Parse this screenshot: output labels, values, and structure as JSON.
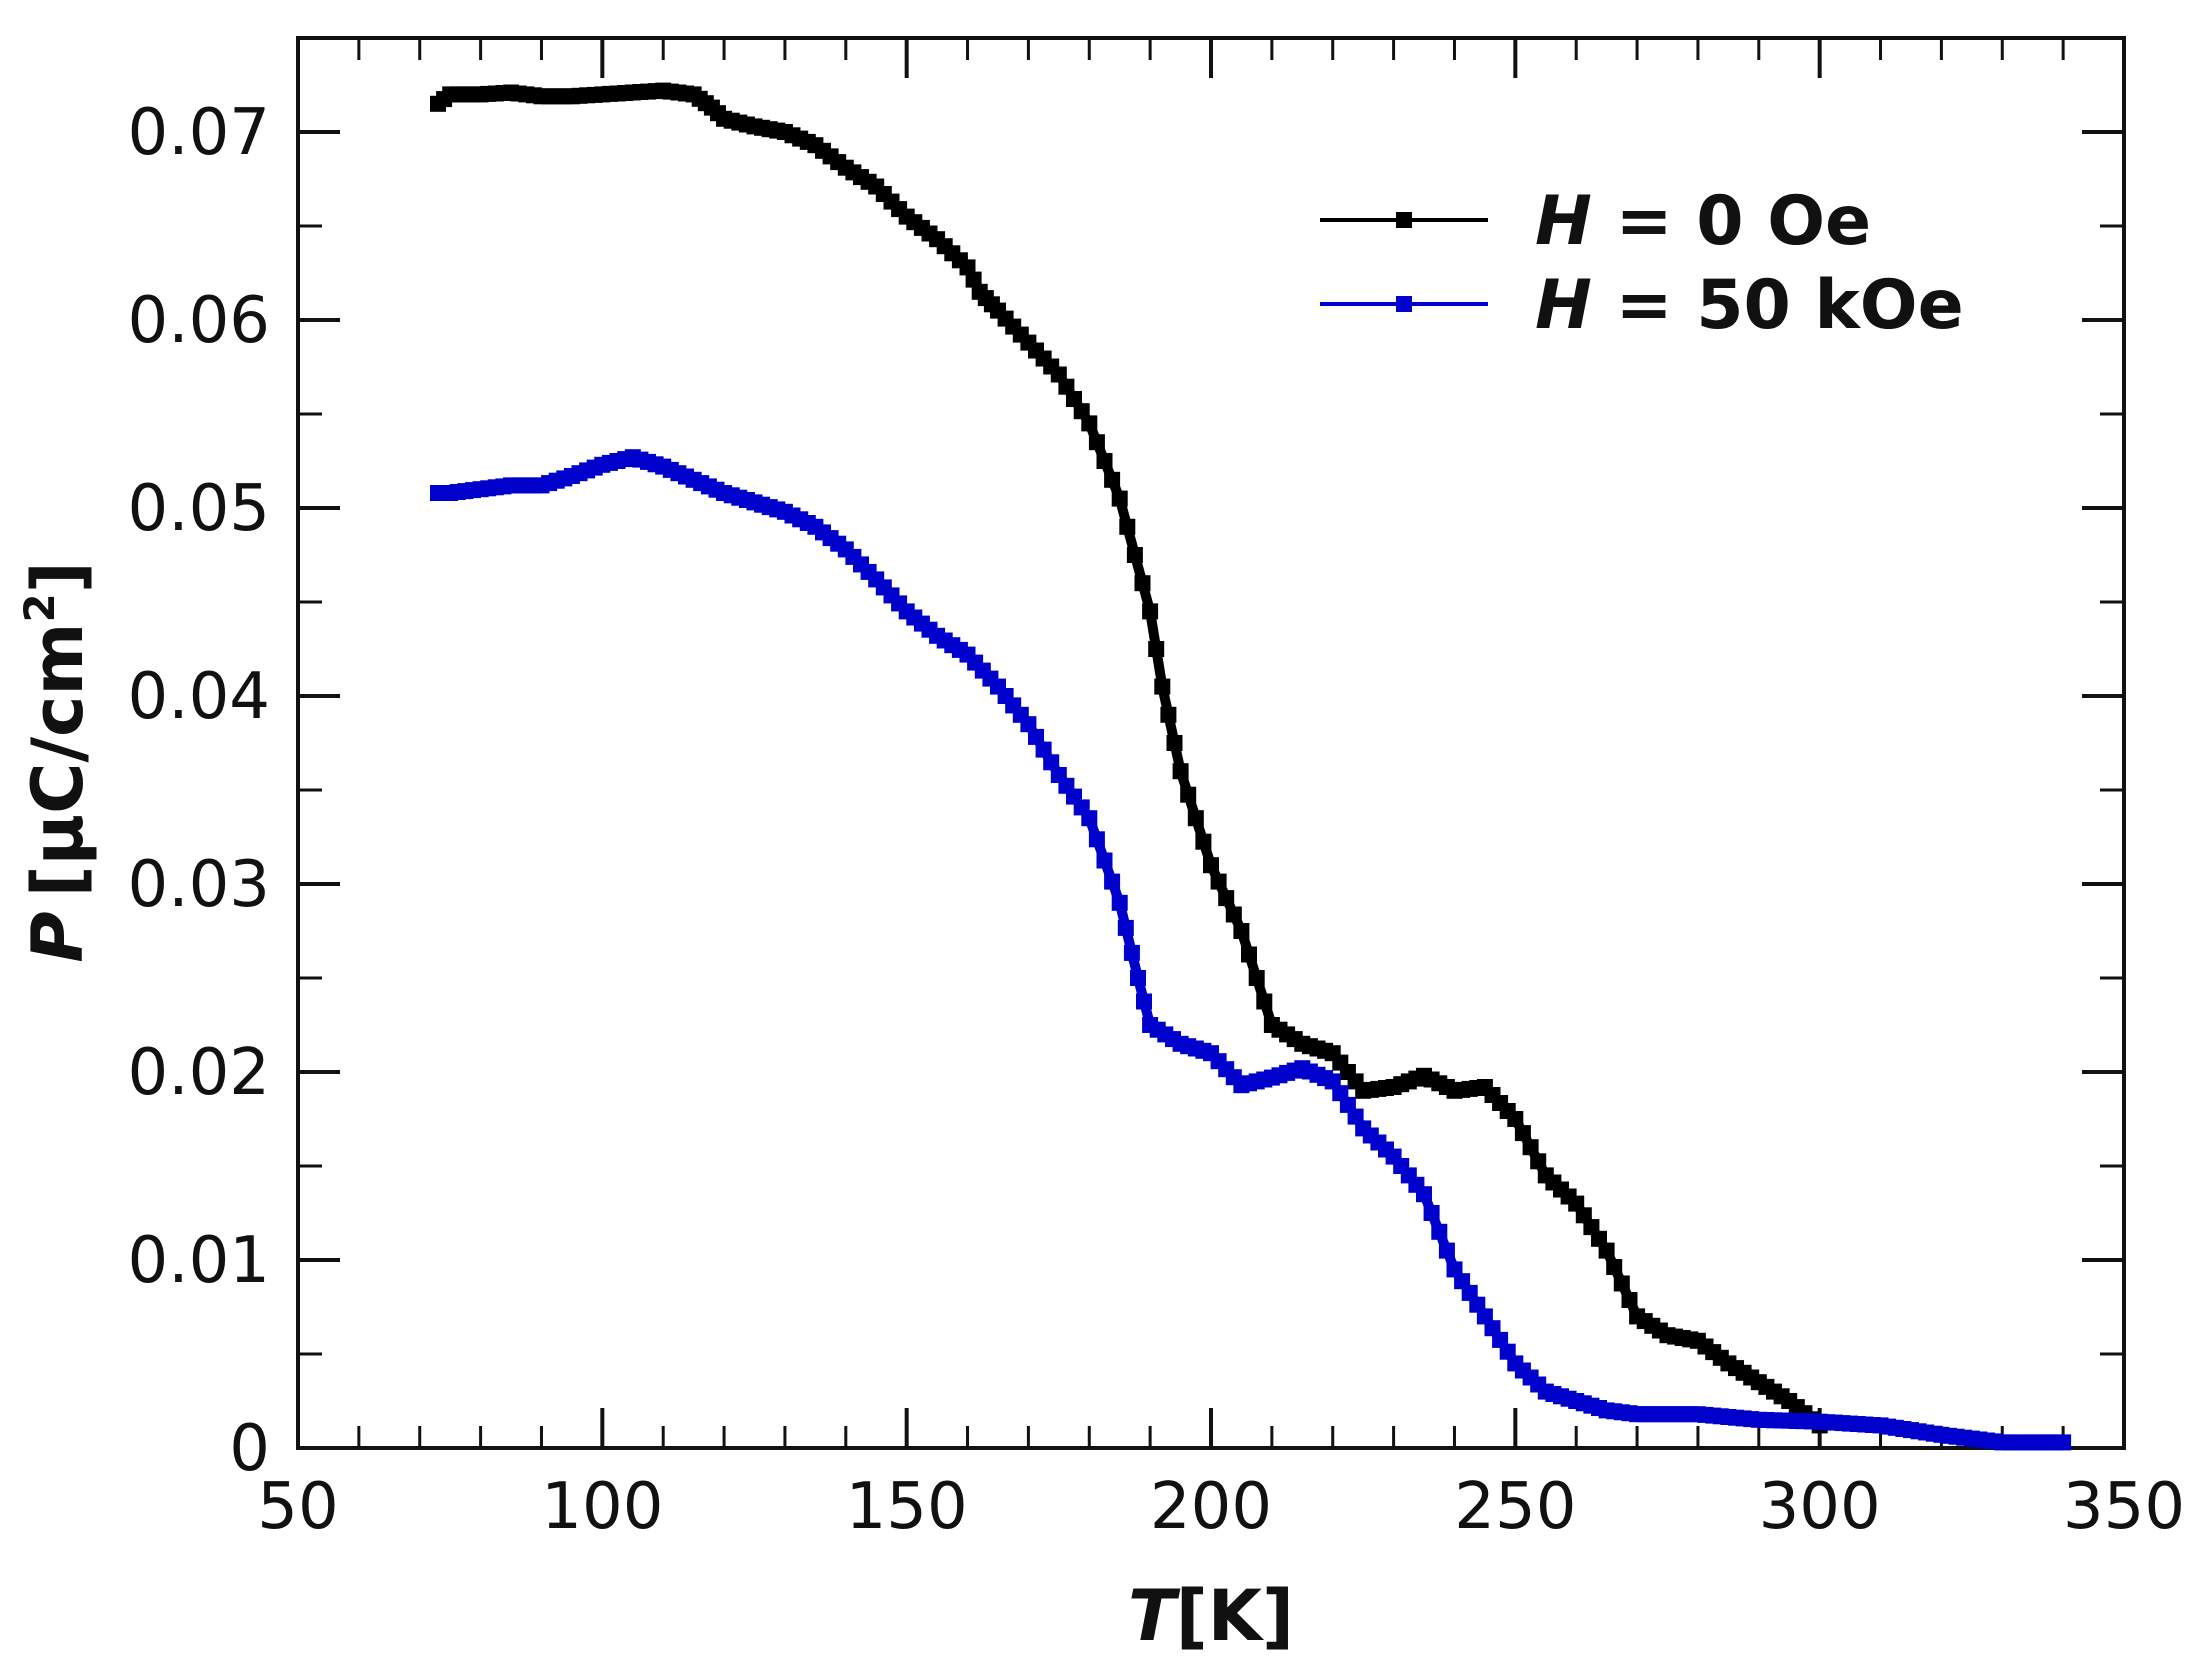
{
  "chart_data": {
    "type": "line",
    "title": "",
    "xlabel": {
      "symbol": "T",
      "unit": "[K]"
    },
    "ylabel": {
      "symbol": "P",
      "unit_prefix": "[μC/cm",
      "unit_exp": "2",
      "unit_suffix": "]"
    },
    "xlim": [
      50,
      350
    ],
    "ylim": [
      0,
      0.075
    ],
    "x_ticks": [
      50,
      100,
      150,
      200,
      250,
      300,
      350
    ],
    "x_tick_labels": [
      "50",
      "100",
      "150",
      "200",
      "250",
      "300",
      "350"
    ],
    "y_ticks": [
      0,
      0.01,
      0.02,
      0.03,
      0.04,
      0.05,
      0.06,
      0.07
    ],
    "y_tick_labels": [
      "0",
      "0.01",
      "0.02",
      "0.03",
      "0.04",
      "0.05",
      "0.06",
      "0.07"
    ],
    "grid": false,
    "legend_position": "top-right",
    "series": [
      {
        "name_symbol": "H",
        "name_rest": " = 0 Oe",
        "color": "#000000",
        "x": [
          73,
          75,
          80,
          85,
          90,
          95,
          100,
          105,
          110,
          115,
          118,
          120,
          125,
          130,
          135,
          140,
          145,
          150,
          155,
          160,
          162,
          165,
          170,
          175,
          180,
          185,
          190,
          192,
          195,
          200,
          205,
          210,
          215,
          220,
          225,
          230,
          235,
          240,
          245,
          250,
          255,
          260,
          265,
          270,
          275,
          280,
          285,
          290,
          295,
          300
        ],
        "y": [
          0.0715,
          0.072,
          0.072,
          0.0721,
          0.0719,
          0.0719,
          0.072,
          0.0721,
          0.0722,
          0.072,
          0.0713,
          0.0707,
          0.0703,
          0.07,
          0.0693,
          0.0681,
          0.0671,
          0.0655,
          0.0643,
          0.0628,
          0.0615,
          0.0605,
          0.0588,
          0.0571,
          0.0545,
          0.0505,
          0.0445,
          0.0405,
          0.036,
          0.031,
          0.0275,
          0.0225,
          0.0215,
          0.021,
          0.019,
          0.0192,
          0.0198,
          0.019,
          0.0192,
          0.0175,
          0.0145,
          0.013,
          0.0105,
          0.007,
          0.006,
          0.0057,
          0.0045,
          0.0035,
          0.0025,
          0.0012
        ]
      },
      {
        "name_symbol": "H",
        "name_rest": " = 50 kOe",
        "color": "#0000cc",
        "x": [
          73,
          75,
          80,
          85,
          90,
          95,
          100,
          105,
          110,
          115,
          120,
          125,
          130,
          135,
          140,
          145,
          150,
          155,
          160,
          165,
          170,
          175,
          180,
          185,
          188,
          190,
          195,
          200,
          205,
          210,
          215,
          220,
          225,
          230,
          235,
          240,
          245,
          250,
          255,
          260,
          265,
          270,
          275,
          280,
          290,
          300,
          310,
          320,
          330,
          340
        ],
        "y": [
          0.0508,
          0.0508,
          0.051,
          0.0512,
          0.0512,
          0.0517,
          0.0523,
          0.0527,
          0.0522,
          0.0515,
          0.0508,
          0.0503,
          0.0498,
          0.049,
          0.0478,
          0.0462,
          0.0445,
          0.0432,
          0.0422,
          0.0405,
          0.0385,
          0.0358,
          0.0335,
          0.029,
          0.025,
          0.0225,
          0.0215,
          0.021,
          0.0193,
          0.0197,
          0.0202,
          0.0195,
          0.017,
          0.0155,
          0.0135,
          0.0095,
          0.007,
          0.0045,
          0.003,
          0.0025,
          0.002,
          0.0018,
          0.0018,
          0.0018,
          0.0015,
          0.0014,
          0.0012,
          0.0007,
          0.0003,
          0.0003
        ]
      }
    ]
  }
}
